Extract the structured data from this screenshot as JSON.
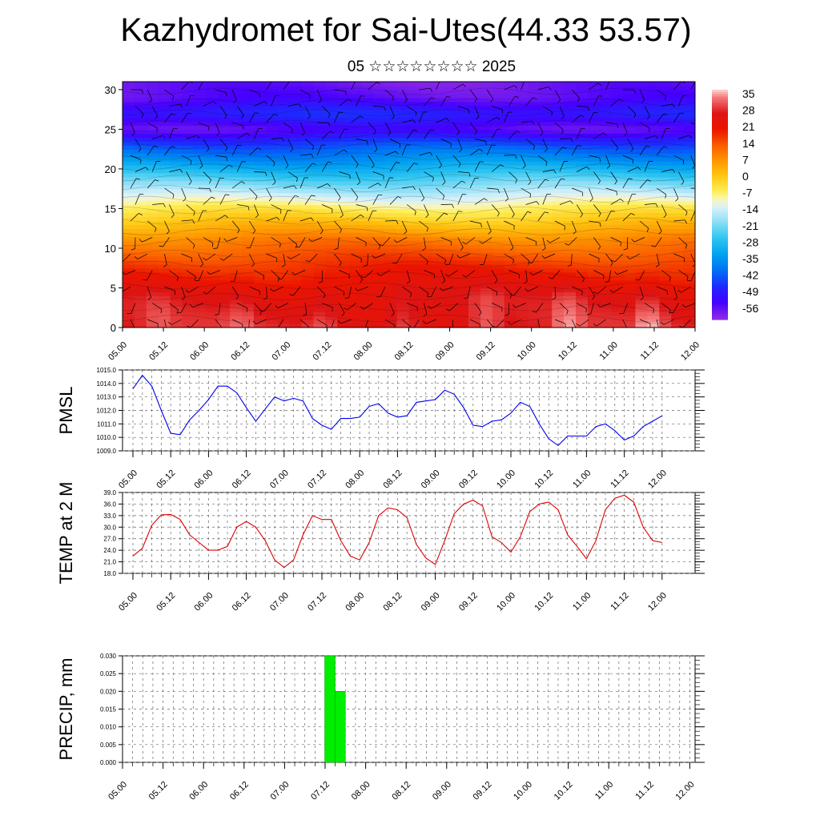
{
  "header": {
    "title": "Kazhydromet for Sai-Utes(44.33 53.57)",
    "subtitle": "05 ☆☆☆☆☆☆☆☆ 2025"
  },
  "colors": {
    "pmsl_line": "#0000ee",
    "temp_line": "#dd0000",
    "precip_bar": "#00ee00",
    "wind_barb": "#000000"
  },
  "chart_data": [
    {
      "type": "heatmap",
      "name_shown": "",
      "x_ticks": [
        "05.00",
        "05.12",
        "06.00",
        "06.12",
        "07.00",
        "07.12",
        "08.00",
        "08.12",
        "09.00",
        "09.12",
        "10.00",
        "10.12",
        "11.00",
        "11.12",
        "12.00"
      ],
      "y_ticks": [
        "0",
        "5",
        "10",
        "15",
        "20",
        "25",
        "30"
      ],
      "ylim": [
        0,
        31
      ],
      "colorbar_ticks": [
        "35",
        "28",
        "21",
        "14",
        "7",
        "0",
        "-7",
        "-14",
        "-21",
        "-28",
        "-35",
        "-42",
        "-49",
        "-56"
      ],
      "colorbar_range": [
        -63,
        38
      ],
      "profile_by_level": [
        [
          0,
          28
        ],
        [
          4,
          26
        ],
        [
          8,
          18
        ],
        [
          11,
          10
        ],
        [
          13,
          2
        ],
        [
          15,
          -6
        ],
        [
          17,
          -16
        ],
        [
          19,
          -26
        ],
        [
          21,
          -36
        ],
        [
          23,
          -45
        ],
        [
          25,
          -58
        ],
        [
          27,
          -50
        ],
        [
          29,
          -58
        ],
        [
          31,
          -60
        ]
      ],
      "overlay": "wind barbs"
    },
    {
      "type": "line",
      "ylabel": "PMSL",
      "x_ticks": [
        "05.00",
        "05.12",
        "06.00",
        "06.12",
        "07.00",
        "07.12",
        "08.00",
        "08.12",
        "09.00",
        "09.12",
        "10.00",
        "10.12",
        "11.00",
        "11.12",
        "12.00"
      ],
      "y_ticks": [
        "1009.0",
        "1010.0",
        "1011.0",
        "1012.0",
        "1013.0",
        "1014.0",
        "1015.0"
      ],
      "ylim": [
        1009,
        1015
      ],
      "x_step_hours": 3,
      "values": [
        1013.6,
        1014.6,
        1013.8,
        1012.0,
        1010.3,
        1010.2,
        1011.3,
        1012.0,
        1012.8,
        1013.8,
        1013.8,
        1013.3,
        1012.2,
        1011.2,
        1012.1,
        1013.0,
        1012.7,
        1012.9,
        1012.7,
        1011.4,
        1010.9,
        1010.6,
        1011.4,
        1011.4,
        1011.5,
        1012.3,
        1012.5,
        1011.8,
        1011.5,
        1011.6,
        1012.6,
        1012.7,
        1012.8,
        1013.5,
        1013.2,
        1012.2,
        1010.9,
        1010.8,
        1011.2,
        1011.3,
        1011.8,
        1012.6,
        1012.3,
        1011.0,
        1009.9,
        1009.4,
        1010.1,
        1010.1,
        1010.1,
        1010.8,
        1011.0,
        1010.5,
        1009.8,
        1010.1,
        1010.8,
        1011.2,
        1011.6
      ]
    },
    {
      "type": "line",
      "ylabel": "TEMP at 2 M",
      "x_ticks": [
        "05.00",
        "05.12",
        "06.00",
        "06.12",
        "07.00",
        "07.12",
        "08.00",
        "08.12",
        "09.00",
        "09.12",
        "10.00",
        "10.12",
        "11.00",
        "11.12",
        "12.00"
      ],
      "y_ticks": [
        "18.0",
        "21.0",
        "24.0",
        "27.0",
        "30.0",
        "33.0",
        "36.0",
        "39.0"
      ],
      "ylim": [
        18,
        39
      ],
      "x_step_hours": 3,
      "values": [
        22.5,
        24.5,
        30.5,
        33.2,
        33.3,
        32.0,
        28.0,
        26.0,
        24.0,
        24.0,
        25.0,
        30.0,
        31.5,
        30.0,
        26.5,
        21.5,
        19.5,
        21.5,
        28.0,
        33.0,
        32.0,
        32.0,
        26.5,
        22.5,
        21.5,
        26.0,
        33.0,
        35.0,
        34.5,
        32.5,
        25.5,
        22.0,
        20.3,
        26.5,
        33.5,
        36.0,
        37.0,
        35.5,
        27.5,
        26.0,
        23.5,
        27.5,
        34.0,
        36.0,
        36.5,
        34.5,
        28.0,
        25.0,
        21.8,
        26.5,
        34.5,
        37.5,
        38.3,
        36.5,
        30.0,
        26.5,
        26.0
      ]
    },
    {
      "type": "bar",
      "ylabel": "PRECIP, mm",
      "x_ticks": [
        "05.00",
        "05.12",
        "06.00",
        "06.12",
        "07.00",
        "07.12",
        "08.00",
        "08.12",
        "09.00",
        "09.12",
        "10.00",
        "10.12",
        "11.00",
        "11.12",
        "12.00"
      ],
      "y_ticks": [
        "0.000",
        "0.005",
        "0.010",
        "0.015",
        "0.020",
        "0.025",
        "0.030"
      ],
      "ylim": [
        0,
        0.03
      ],
      "x_step_hours": 3,
      "values": [
        0,
        0,
        0,
        0,
        0,
        0,
        0,
        0,
        0,
        0,
        0,
        0,
        0,
        0,
        0,
        0,
        0,
        0,
        0,
        0,
        0.03,
        0.02,
        0,
        0,
        0,
        0,
        0,
        0,
        0,
        0,
        0,
        0,
        0,
        0,
        0,
        0,
        0,
        0,
        0,
        0,
        0,
        0,
        0,
        0,
        0,
        0,
        0,
        0,
        0,
        0,
        0,
        0,
        0,
        0,
        0,
        0,
        0
      ]
    }
  ]
}
